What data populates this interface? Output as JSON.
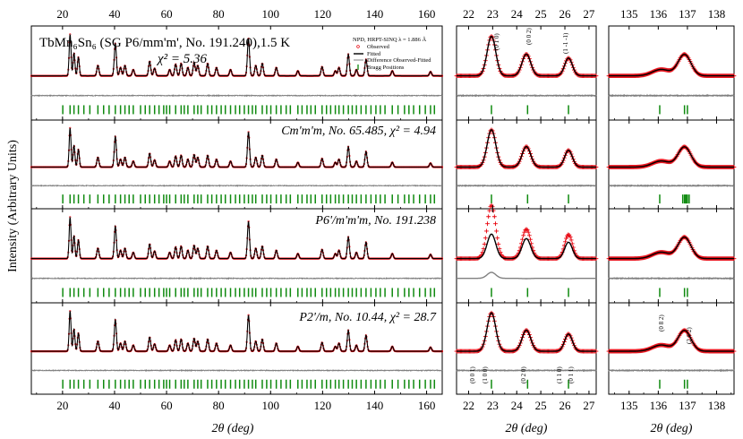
{
  "figure": {
    "ylabel": "Intensity (Arbitrary Units)",
    "xlabel": "2θ (deg)",
    "colors": {
      "observed": "#e8000b",
      "fitted": "#000000",
      "difference": "#808080",
      "bragg": "#0f8a0f"
    }
  },
  "legend": {
    "title": "NPD, HRPT-SINQ λ = 1.886 Å",
    "items": [
      "Observed",
      "Fitted",
      "Difference Observed-Fitted",
      "Bragg Positions"
    ]
  },
  "rows": [
    {
      "main_label": "TbMn₆Sn₆ (SG P6/mm'm', No. 191.240),1.5 K",
      "main_label2": "χ² = 5.36",
      "diff_mid": 22,
      "diff_far": 1
    },
    {
      "main_label": "Cm'm'm, No. 65.485, χ² = 4.94",
      "main_label2": "",
      "diff_mid": 4,
      "diff_far": 2
    },
    {
      "main_label": "P6'/m'm'm, No. 191.238",
      "main_label2": "",
      "diff_mid": 55,
      "diff_far": 3
    },
    {
      "main_label": "P2'/m, No. 10.44, χ² = 28.7",
      "main_label2": "",
      "diff_mid": 30,
      "diff_far": 4
    }
  ],
  "hkl_labels": {
    "row1_mid": [
      "(0 1 0)",
      "(0 0 2)",
      "(1 -1 -1)"
    ],
    "row4_mid": [
      "(0 0 1)",
      "(1 0 0)",
      "(0 2 0)",
      "(1 1 0)",
      "(0 1 1)"
    ],
    "row4_far": [
      "(0 8 2)",
      "(2 6 2)"
    ]
  },
  "chart_data": [
    {
      "type": "line",
      "panel": "full-range",
      "xlabel": "2θ (deg)",
      "ylabel": "Intensity (Arbitrary Units)",
      "xlim": [
        8,
        166
      ],
      "xticks": [
        20,
        40,
        60,
        80,
        100,
        120,
        140,
        160
      ],
      "series": [
        {
          "name": "Observed"
        },
        {
          "name": "Fitted"
        },
        {
          "name": "Difference Observed-Fitted"
        },
        {
          "name": "Bragg Positions"
        }
      ],
      "peaks": [
        [
          22.9,
          1.0,
          0.35
        ],
        [
          24.4,
          0.55,
          0.35
        ],
        [
          26.1,
          0.45,
          0.35
        ],
        [
          33.6,
          0.25,
          0.4
        ],
        [
          40.3,
          0.78,
          0.4
        ],
        [
          42.3,
          0.2,
          0.4
        ],
        [
          44.0,
          0.25,
          0.4
        ],
        [
          47.2,
          0.15,
          0.4
        ],
        [
          53.5,
          0.35,
          0.4
        ],
        [
          55.4,
          0.18,
          0.4
        ],
        [
          61.2,
          0.15,
          0.4
        ],
        [
          63.5,
          0.28,
          0.4
        ],
        [
          65.6,
          0.3,
          0.4
        ],
        [
          68.2,
          0.2,
          0.4
        ],
        [
          70.6,
          0.32,
          0.4
        ],
        [
          72.0,
          0.25,
          0.4
        ],
        [
          75.8,
          0.3,
          0.4
        ],
        [
          79.2,
          0.2,
          0.4
        ],
        [
          84.6,
          0.15,
          0.4
        ],
        [
          91.5,
          0.9,
          0.4
        ],
        [
          94.3,
          0.25,
          0.4
        ],
        [
          96.8,
          0.3,
          0.4
        ],
        [
          102.2,
          0.2,
          0.4
        ],
        [
          110.5,
          0.12,
          0.4
        ],
        [
          119.8,
          0.22,
          0.4
        ],
        [
          124.9,
          0.12,
          0.4
        ],
        [
          126.3,
          0.2,
          0.4
        ],
        [
          129.9,
          0.52,
          0.4
        ],
        [
          133.0,
          0.15,
          0.4
        ],
        [
          136.7,
          0.4,
          0.4
        ],
        [
          146.8,
          0.12,
          0.4
        ],
        [
          161.5,
          0.1,
          0.4
        ]
      ]
    },
    {
      "type": "line",
      "panel": "zoom-low-angle",
      "xlabel": "2θ (deg)",
      "xlim": [
        21.5,
        27.3
      ],
      "xticks": [
        22,
        23,
        24,
        25,
        26,
        27
      ],
      "peaks": [
        [
          22.95,
          1.0,
          0.18
        ],
        [
          24.4,
          0.55,
          0.18
        ],
        [
          26.15,
          0.45,
          0.16
        ]
      ]
    },
    {
      "type": "line",
      "panel": "zoom-high-angle",
      "xlabel": "2θ (deg)",
      "xlim": [
        134.3,
        138.6
      ],
      "xticks": [
        135,
        136,
        137,
        138
      ],
      "peaks": [
        [
          136.1,
          0.18,
          0.3
        ],
        [
          136.9,
          0.6,
          0.22
        ]
      ]
    }
  ]
}
